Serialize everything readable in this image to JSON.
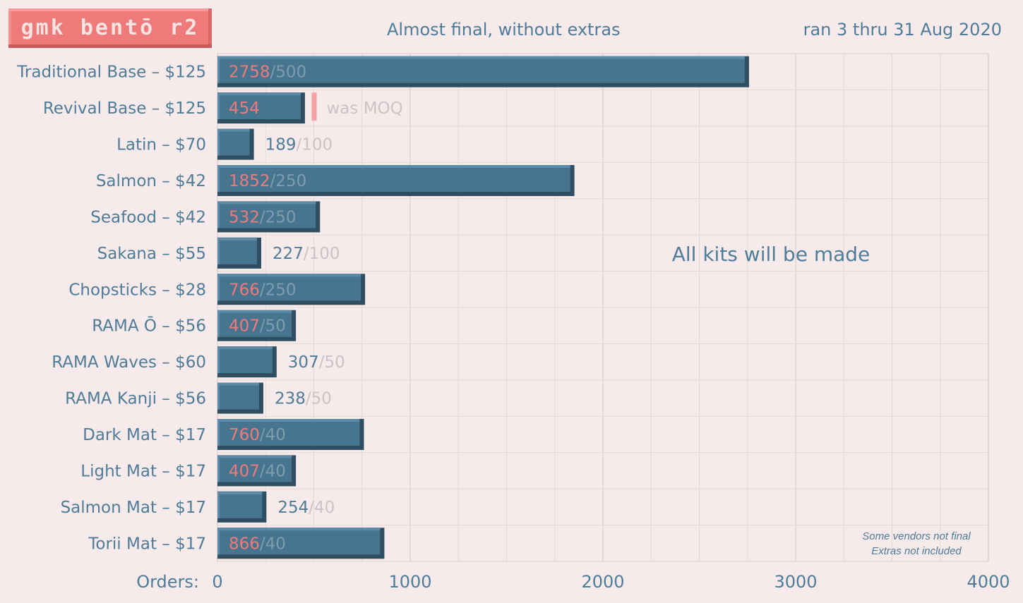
{
  "logo": {
    "text": "gmk bentō r2"
  },
  "subtitle": "Almost final, without extras",
  "date_range": "ran 3 thru 31 Aug 2020",
  "annotation": "All kits will be made",
  "notes": [
    "Some vendors not final",
    "Extras not included"
  ],
  "x_axis_label": "Orders:",
  "colors": {
    "bar": "#477590",
    "bar_light": "#5d8aa6",
    "bar_dark": "#2f4e61",
    "highlight": "#ee7a7a",
    "label": "#4f7c98",
    "muted": "#c9c4c6",
    "grid": "#e4d8d8",
    "background": "#f6eaea"
  },
  "chart_data": {
    "type": "bar",
    "orientation": "horizontal",
    "xlim": [
      0,
      4000
    ],
    "xticks": [
      0,
      1000,
      2000,
      3000,
      4000
    ],
    "grid": true,
    "categories": [
      "Traditional Base – $125",
      "Revival Base – $125",
      "Latin – $70",
      "Salmon – $42",
      "Seafood – $42",
      "Sakana – $55",
      "Chopsticks – $28",
      "RAMA Ō – $56",
      "RAMA Waves – $60",
      "RAMA Kanji – $56",
      "Dark Mat – $17",
      "Light Mat – $17",
      "Salmon Mat – $17",
      "Torii Mat – $17"
    ],
    "values": [
      2758,
      454,
      189,
      1852,
      532,
      227,
      766,
      407,
      307,
      238,
      760,
      407,
      254,
      866
    ],
    "moq": [
      500,
      null,
      100,
      250,
      250,
      100,
      250,
      50,
      50,
      50,
      40,
      40,
      40,
      40
    ],
    "moq_labels": [
      "/500",
      "",
      "/100",
      "/250",
      "/250",
      "/100",
      "/250",
      "/50",
      "/50",
      "/50",
      "/40",
      "/40",
      "/40",
      "/40"
    ],
    "former_moq": {
      "category": "Revival Base – $125",
      "value": 500,
      "label": "was MOQ"
    }
  }
}
